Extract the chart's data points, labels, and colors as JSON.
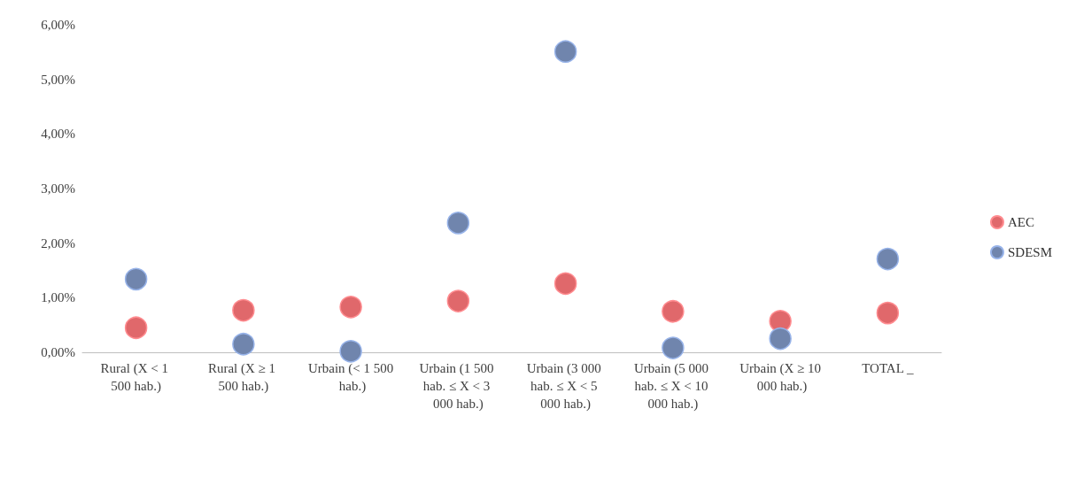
{
  "chart_data": {
    "type": "scatter",
    "categories": [
      "Rural (X < 1 500 hab.)",
      "Rural (X ≥ 1 500 hab.)",
      "Urbain (< 1 500 hab.)",
      "Urbain (1 500 hab. ≤ X < 3 000 hab.)",
      "Urbain (3 000 hab. ≤ X < 5 000 hab.)",
      "Urbain (5 000 hab. ≤ X < 10 000 hab.)",
      "Urbain (X ≥ 10 000 hab.)",
      "TOTAL _"
    ],
    "series": [
      {
        "name": "AEC",
        "color": "#e0686b",
        "values": [
          0.45,
          0.77,
          0.83,
          0.94,
          1.26,
          0.75,
          0.57,
          0.72
        ]
      },
      {
        "name": "SDESM",
        "color": "#7085ad",
        "values": [
          1.34,
          0.15,
          0.02,
          2.37,
          5.51,
          0.08,
          0.25,
          1.71
        ]
      }
    ],
    "ylim": [
      0,
      6
    ],
    "yticks": [
      {
        "value": 0,
        "label": "0,00%"
      },
      {
        "value": 1,
        "label": "1,00%"
      },
      {
        "value": 2,
        "label": "2,00%"
      },
      {
        "value": 3,
        "label": "3,00%"
      },
      {
        "value": 4,
        "label": "4,00%"
      },
      {
        "value": 5,
        "label": "5,00%"
      },
      {
        "value": 6,
        "label": "6,00%"
      }
    ],
    "grid": false,
    "legend": "right",
    "marker": "circle"
  }
}
